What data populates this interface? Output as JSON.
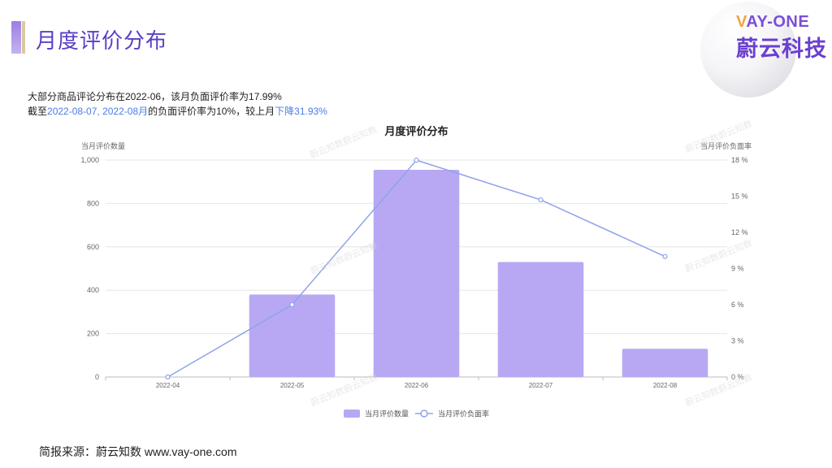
{
  "header": {
    "title": "月度评价分布"
  },
  "logo": {
    "en_v": "V",
    "en_rest": "AY-ONE",
    "cn": "蔚云科技"
  },
  "summary": {
    "line1": "大部分商品评论分布在2022-06，该月负面评价率为17.99%",
    "line2_prefix": "截至",
    "line2_date": "2022-08-07",
    "line2_sep": ", ",
    "line2_month": "2022-08月",
    "line2_mid": "的负面评价率为10%，较上月",
    "line2_change": "下降31.93%"
  },
  "watermark": "蔚云知数蔚云知数",
  "source": "简报来源：蔚云知数 www.vay-one.com",
  "chart_data": {
    "type": "bar",
    "title": "月度评价分布",
    "categories": [
      "2022-04",
      "2022-05",
      "2022-06",
      "2022-07",
      "2022-08"
    ],
    "series": [
      {
        "name": "当月评价数量",
        "type": "bar",
        "axis": "left",
        "color": "#b8a8f4",
        "values": [
          0,
          380,
          955,
          530,
          130
        ]
      },
      {
        "name": "当月评价负面率",
        "type": "line",
        "axis": "right",
        "color": "#8fa3ea",
        "values": [
          0,
          6.0,
          17.99,
          14.7,
          10.0
        ]
      }
    ],
    "ylabel_left": "当月评价数量",
    "ylabel_right": "当月评价负面率",
    "ylim_left": [
      0,
      1000
    ],
    "yticks_left": [
      "0",
      "200",
      "400",
      "600",
      "800",
      "1,000"
    ],
    "ylim_right": [
      0,
      18
    ],
    "yticks_right": [
      "0 %",
      "3 %",
      "6 %",
      "9 %",
      "12 %",
      "15 %",
      "18 %"
    ],
    "grid": true,
    "legend": "bottom-center"
  }
}
